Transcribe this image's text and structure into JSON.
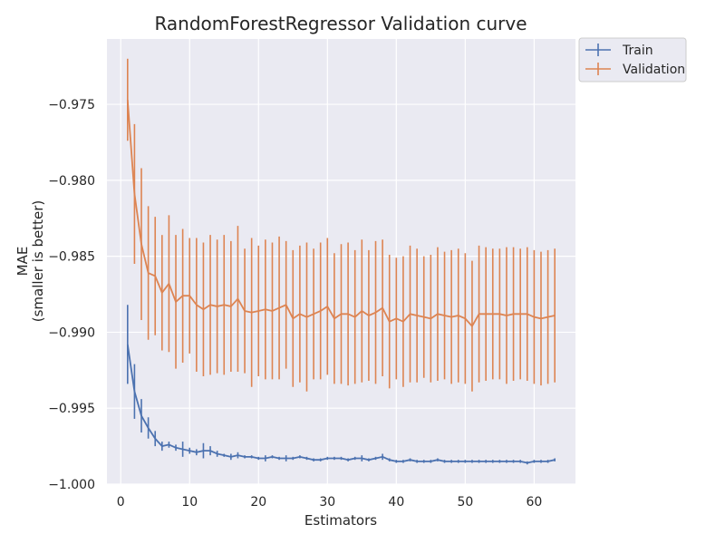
{
  "chart_data": {
    "type": "line",
    "title": "RandomForestRegressor Validation curve",
    "xlabel": "Estimators",
    "ylabel_lines": [
      "MAE",
      "(smaller is better)"
    ],
    "xlim": [
      -2,
      66
    ],
    "ylim": [
      -1.0,
      -0.9707
    ],
    "xticks": [
      0,
      10,
      20,
      30,
      40,
      50,
      60
    ],
    "xtick_labels": [
      "0",
      "10",
      "20",
      "30",
      "40",
      "50",
      "60"
    ],
    "yticks": [
      -1.0,
      -0.995,
      -0.99,
      -0.985,
      -0.98,
      -0.975
    ],
    "ytick_labels": [
      "−1.000",
      "−0.995",
      "−0.990",
      "−0.985",
      "−0.980",
      "−0.975"
    ],
    "grid": true,
    "legend_position": "outside-top-right",
    "series": [
      {
        "name": "Train",
        "color": "#4c72b0",
        "x": [
          1,
          2,
          3,
          4,
          5,
          6,
          7,
          8,
          9,
          10,
          11,
          12,
          13,
          14,
          15,
          16,
          17,
          18,
          19,
          20,
          21,
          22,
          23,
          24,
          25,
          26,
          27,
          28,
          29,
          30,
          31,
          32,
          33,
          34,
          35,
          36,
          37,
          38,
          39,
          40,
          41,
          42,
          43,
          44,
          45,
          46,
          47,
          48,
          49,
          50,
          51,
          52,
          53,
          54,
          55,
          56,
          57,
          58,
          59,
          60,
          61,
          62,
          63
        ],
        "y": [
          -0.9908,
          -0.9939,
          -0.9955,
          -0.9963,
          -0.997,
          -0.9975,
          -0.9974,
          -0.9976,
          -0.9977,
          -0.9978,
          -0.9979,
          -0.9978,
          -0.9978,
          -0.998,
          -0.9981,
          -0.9982,
          -0.9981,
          -0.9982,
          -0.9982,
          -0.9983,
          -0.9983,
          -0.9982,
          -0.9983,
          -0.9983,
          -0.9983,
          -0.9982,
          -0.9983,
          -0.9984,
          -0.9984,
          -0.9983,
          -0.9983,
          -0.9983,
          -0.9984,
          -0.9983,
          -0.9983,
          -0.9984,
          -0.9983,
          -0.9982,
          -0.9984,
          -0.9985,
          -0.9985,
          -0.9984,
          -0.9985,
          -0.9985,
          -0.9985,
          -0.9984,
          -0.9985,
          -0.9985,
          -0.9985,
          -0.9985,
          -0.9985,
          -0.9985,
          -0.9985,
          -0.9985,
          -0.9985,
          -0.9985,
          -0.9985,
          -0.9985,
          -0.9986,
          -0.9985,
          -0.9985,
          -0.9985,
          -0.9984
        ],
        "err": [
          0.0026,
          0.0018,
          0.0011,
          0.0007,
          0.0005,
          0.0003,
          0.0002,
          0.0002,
          0.0005,
          0.0002,
          0.0002,
          0.0005,
          0.0003,
          0.0002,
          0.0001,
          0.0002,
          0.0002,
          0.0001,
          0.0001,
          0.0001,
          0.0002,
          0.0001,
          0.0001,
          0.0002,
          0.0001,
          0.0001,
          0.0001,
          0.0001,
          0.0001,
          0.0001,
          0.0001,
          0.0001,
          0.0001,
          0.0001,
          0.0002,
          0.0001,
          0.0001,
          0.0002,
          0.0001,
          0.0001,
          0.0001,
          0.0001,
          0.0001,
          0.0001,
          0.0001,
          0.0001,
          0.0001,
          0.0001,
          0.0001,
          0.0001,
          0.0001,
          0.0001,
          0.0001,
          0.0001,
          0.0001,
          0.0001,
          0.0001,
          0.0001,
          0.0001,
          0.0001,
          0.0001,
          0.0001,
          0.0001
        ]
      },
      {
        "name": "Validation",
        "color": "#dd8452",
        "x": [
          1,
          2,
          3,
          4,
          5,
          6,
          7,
          8,
          9,
          10,
          11,
          12,
          13,
          14,
          15,
          16,
          17,
          18,
          19,
          20,
          21,
          22,
          23,
          24,
          25,
          26,
          27,
          28,
          29,
          30,
          31,
          32,
          33,
          34,
          35,
          36,
          37,
          38,
          39,
          40,
          41,
          42,
          43,
          44,
          45,
          46,
          47,
          48,
          49,
          50,
          51,
          52,
          53,
          54,
          55,
          56,
          57,
          58,
          59,
          60,
          61,
          62,
          63
        ],
        "y": [
          -0.9747,
          -0.9809,
          -0.9842,
          -0.9861,
          -0.9863,
          -0.9874,
          -0.9868,
          -0.988,
          -0.9876,
          -0.9876,
          -0.9882,
          -0.9885,
          -0.9882,
          -0.9883,
          -0.9882,
          -0.9883,
          -0.9878,
          -0.9886,
          -0.9887,
          -0.9886,
          -0.9885,
          -0.9886,
          -0.9884,
          -0.9882,
          -0.9891,
          -0.9888,
          -0.989,
          -0.9888,
          -0.9886,
          -0.9883,
          -0.9891,
          -0.9888,
          -0.9888,
          -0.989,
          -0.9886,
          -0.9889,
          -0.9887,
          -0.9884,
          -0.9893,
          -0.9891,
          -0.9893,
          -0.9888,
          -0.9889,
          -0.989,
          -0.9891,
          -0.9888,
          -0.9889,
          -0.989,
          -0.9889,
          -0.9891,
          -0.9896,
          -0.9888,
          -0.9888,
          -0.9888,
          -0.9888,
          -0.9889,
          -0.9888,
          -0.9888,
          -0.9888,
          -0.989,
          -0.9891,
          -0.989,
          -0.9889
        ],
        "err": [
          0.0027,
          0.0046,
          0.005,
          0.0044,
          0.0039,
          0.0038,
          0.0045,
          0.0044,
          0.0044,
          0.0038,
          0.0044,
          0.0044,
          0.0046,
          0.0044,
          0.0046,
          0.0043,
          0.0048,
          0.0041,
          0.0049,
          0.0043,
          0.0046,
          0.0045,
          0.0047,
          0.0042,
          0.0045,
          0.0045,
          0.0049,
          0.0043,
          0.0045,
          0.0045,
          0.0043,
          0.0046,
          0.0047,
          0.0044,
          0.0047,
          0.0043,
          0.0047,
          0.0045,
          0.0044,
          0.004,
          0.0043,
          0.0045,
          0.0044,
          0.004,
          0.0042,
          0.0044,
          0.0042,
          0.0044,
          0.0044,
          0.0043,
          0.0043,
          0.0045,
          0.0044,
          0.0043,
          0.0043,
          0.0045,
          0.0044,
          0.0043,
          0.0044,
          0.0044,
          0.0044,
          0.0044,
          0.0044
        ]
      }
    ]
  }
}
